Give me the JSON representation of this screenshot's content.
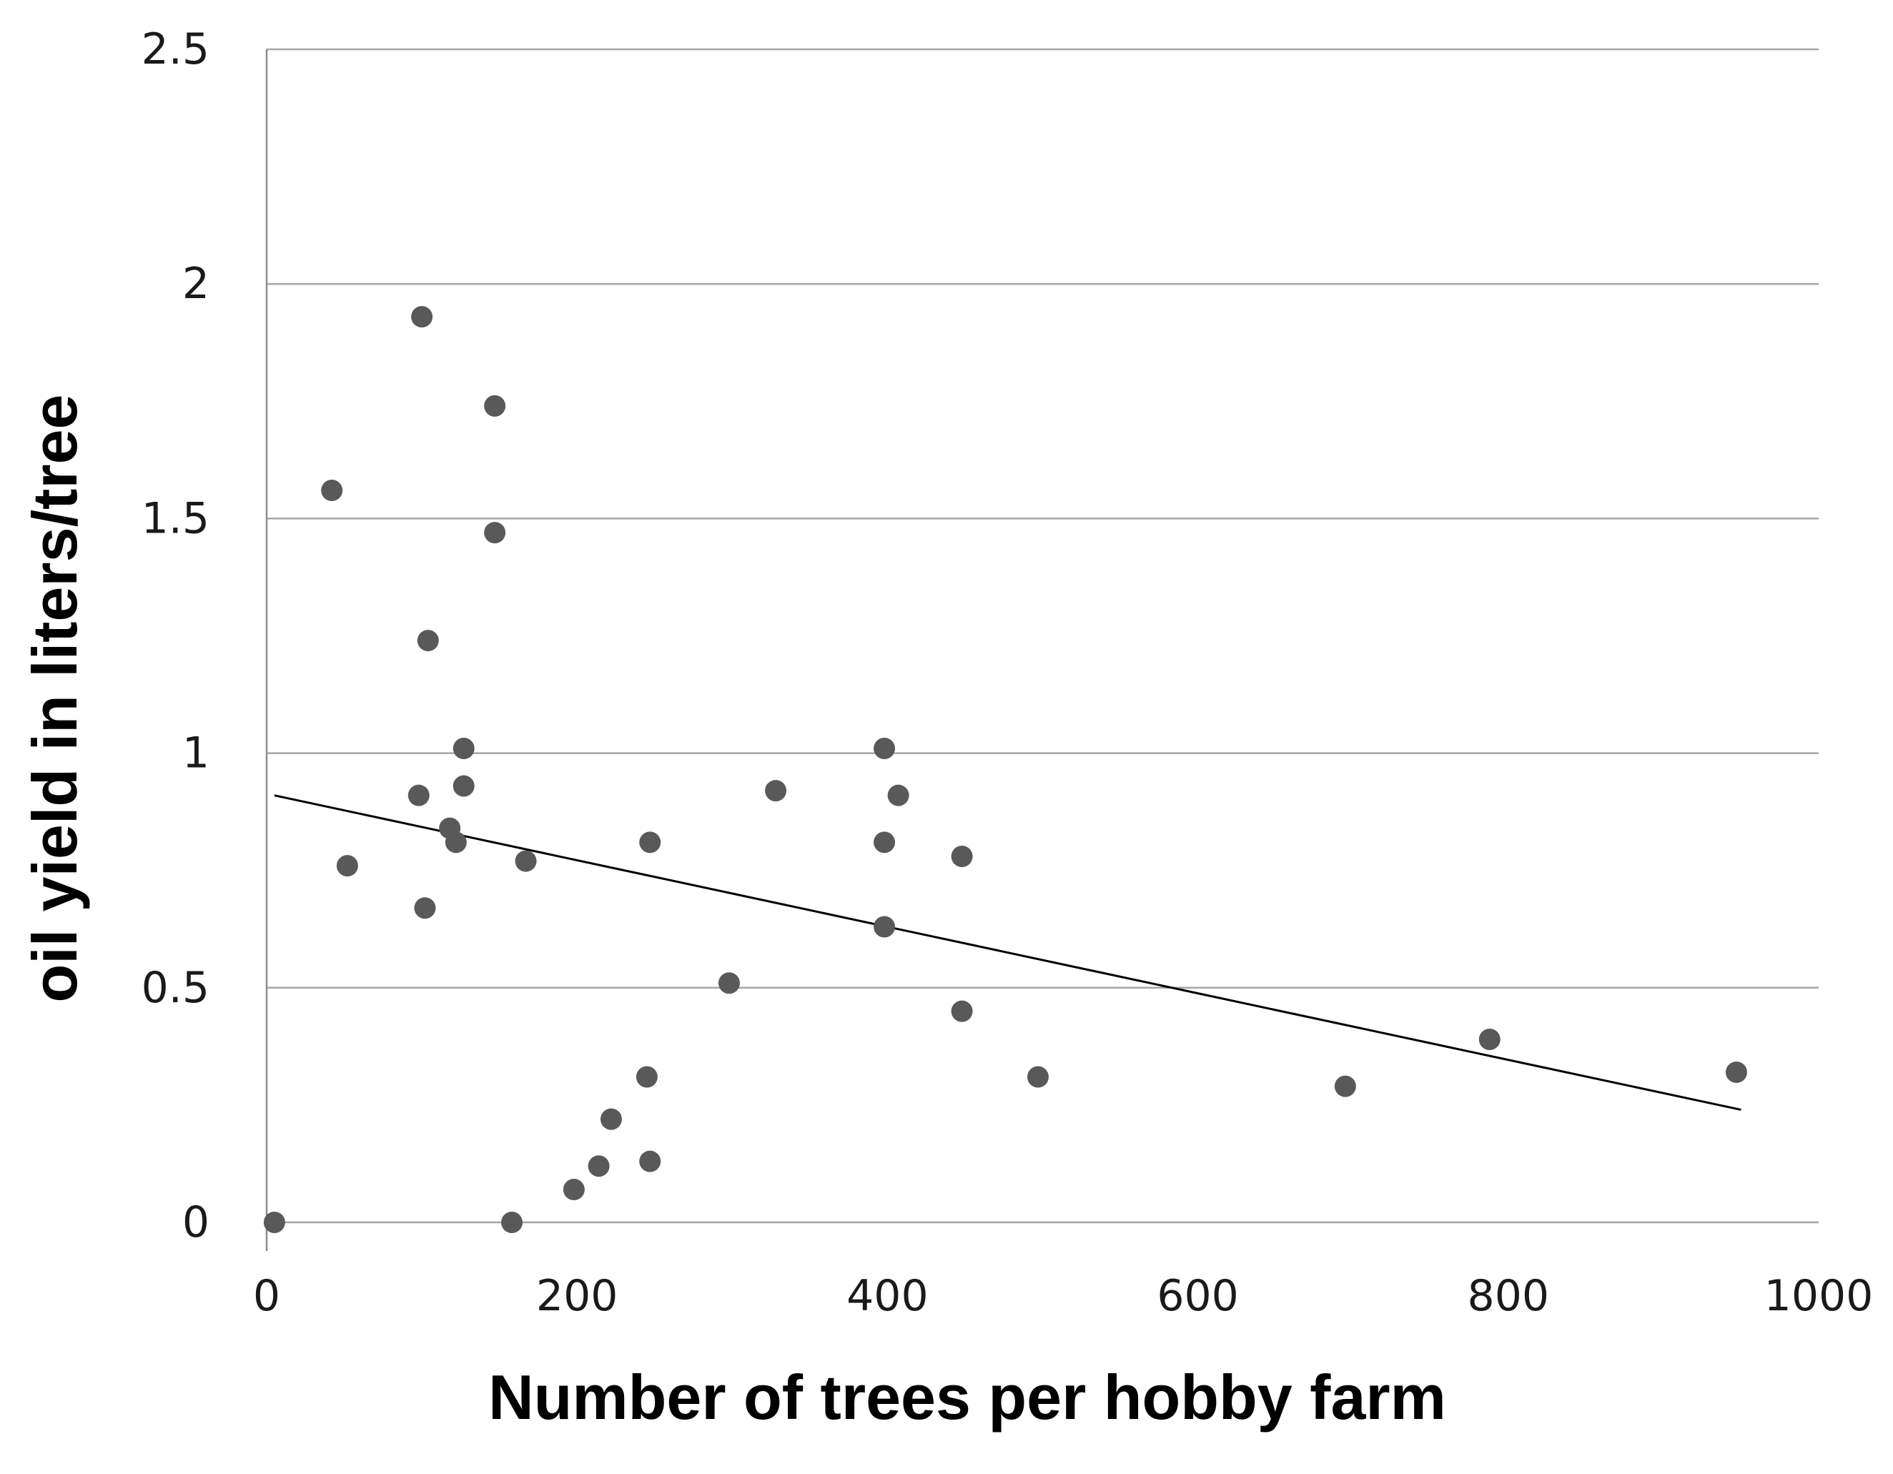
{
  "chart_data": {
    "type": "scatter",
    "title": "",
    "xlabel": "Number of trees per hobby farm",
    "ylabel": "oil yield in liters/tree",
    "xlim": [
      0,
      1000
    ],
    "ylim": [
      0,
      2.5
    ],
    "x_ticks": [
      "0",
      "200",
      "400",
      "600",
      "800",
      "1000"
    ],
    "y_ticks": [
      "0",
      "0.5",
      "1",
      "1.5",
      "2",
      "2.5"
    ],
    "grid": "horizontal",
    "legend": "none",
    "series": [
      {
        "marker_color": "#595959",
        "points": [
          {
            "x": 5,
            "y": 0.0
          },
          {
            "x": 42,
            "y": 1.56
          },
          {
            "x": 52,
            "y": 0.76
          },
          {
            "x": 98,
            "y": 0.91
          },
          {
            "x": 100,
            "y": 1.93
          },
          {
            "x": 102,
            "y": 0.67
          },
          {
            "x": 104,
            "y": 1.24
          },
          {
            "x": 118,
            "y": 0.84
          },
          {
            "x": 122,
            "y": 0.81
          },
          {
            "x": 127,
            "y": 1.01
          },
          {
            "x": 127,
            "y": 0.93
          },
          {
            "x": 147,
            "y": 1.74
          },
          {
            "x": 147,
            "y": 1.47
          },
          {
            "x": 158,
            "y": 0.0
          },
          {
            "x": 167,
            "y": 0.77
          },
          {
            "x": 198,
            "y": 0.07
          },
          {
            "x": 214,
            "y": 0.12
          },
          {
            "x": 222,
            "y": 0.22
          },
          {
            "x": 245,
            "y": 0.31
          },
          {
            "x": 247,
            "y": 0.81
          },
          {
            "x": 247,
            "y": 0.13
          },
          {
            "x": 298,
            "y": 0.51
          },
          {
            "x": 328,
            "y": 0.92
          },
          {
            "x": 398,
            "y": 1.01
          },
          {
            "x": 398,
            "y": 0.81
          },
          {
            "x": 398,
            "y": 0.63
          },
          {
            "x": 407,
            "y": 0.91
          },
          {
            "x": 448,
            "y": 0.78
          },
          {
            "x": 448,
            "y": 0.45
          },
          {
            "x": 497,
            "y": 0.31
          },
          {
            "x": 695,
            "y": 0.29
          },
          {
            "x": 788,
            "y": 0.39
          },
          {
            "x": 947,
            "y": 0.32
          }
        ]
      }
    ],
    "trendline": {
      "type": "linear",
      "color": "#000000",
      "points": [
        {
          "x": 5,
          "y": 0.91
        },
        {
          "x": 950,
          "y": 0.24
        }
      ]
    },
    "colors": {
      "grid": "#a6a6a6",
      "axis": "#8c8c8c",
      "marker": "#595959",
      "trendline": "#000000"
    }
  }
}
